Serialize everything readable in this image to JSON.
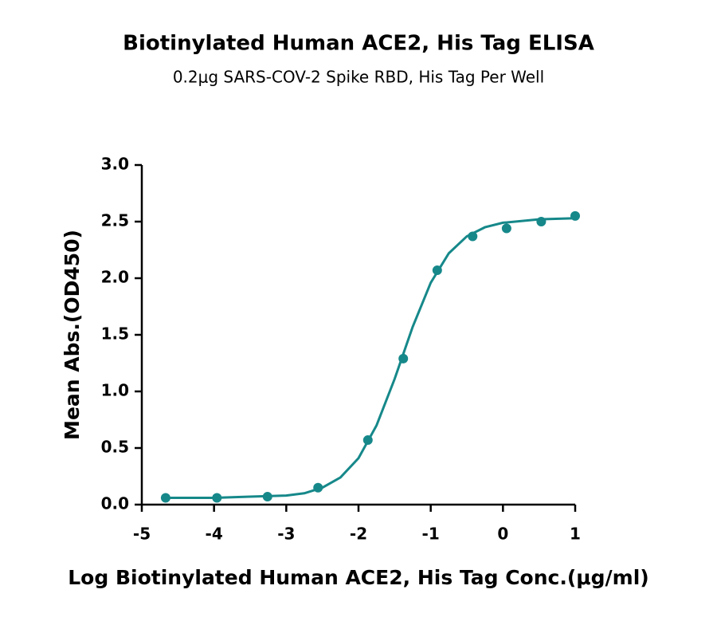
{
  "chart_data": {
    "type": "scatter",
    "title": "Biotinylated Human ACE2, His Tag ELISA",
    "subtitle": "0.2μg SARS-COV-2 Spike RBD, His Tag Per Well",
    "x_label": "Log Biotinylated Human ACE2, His Tag Conc.(μg/ml)",
    "y_label": "Mean Abs.(OD450)",
    "color": "#16888a",
    "xlim": [
      -5,
      1
    ],
    "xticks": [
      -5,
      -4,
      -3,
      -2,
      -1,
      0,
      1
    ],
    "ylim": [
      0,
      3
    ],
    "yticks": [
      {
        "value": 0,
        "label": "0.0"
      },
      0.5,
      {
        "value": 1,
        "label": "1.0"
      },
      1.5,
      {
        "value": 2,
        "label": "2.0"
      },
      2.5,
      {
        "value": 3,
        "label": "3.0"
      }
    ],
    "series": [
      {
        "type": "scatter",
        "x": [
          -4.67,
          -3.96,
          -3.26,
          -2.56,
          -1.87,
          -1.38,
          -0.91,
          -0.42,
          0.05,
          0.53,
          1.0
        ],
        "values": [
          0.06,
          0.06,
          0.07,
          0.15,
          0.57,
          1.29,
          2.07,
          2.37,
          2.44,
          2.5,
          2.55
        ]
      },
      {
        "type": "line",
        "x": [
          -4.7,
          -4,
          -3.5,
          -3,
          -2.75,
          -2.5,
          -2.25,
          -2,
          -1.75,
          -1.5,
          -1.25,
          -1,
          -0.75,
          -0.5,
          -0.25,
          0,
          0.5,
          1
        ],
        "values": [
          0.06,
          0.06,
          0.07,
          0.08,
          0.1,
          0.15,
          0.24,
          0.41,
          0.7,
          1.11,
          1.57,
          1.96,
          2.22,
          2.37,
          2.45,
          2.49,
          2.52,
          2.53
        ]
      }
    ]
  }
}
